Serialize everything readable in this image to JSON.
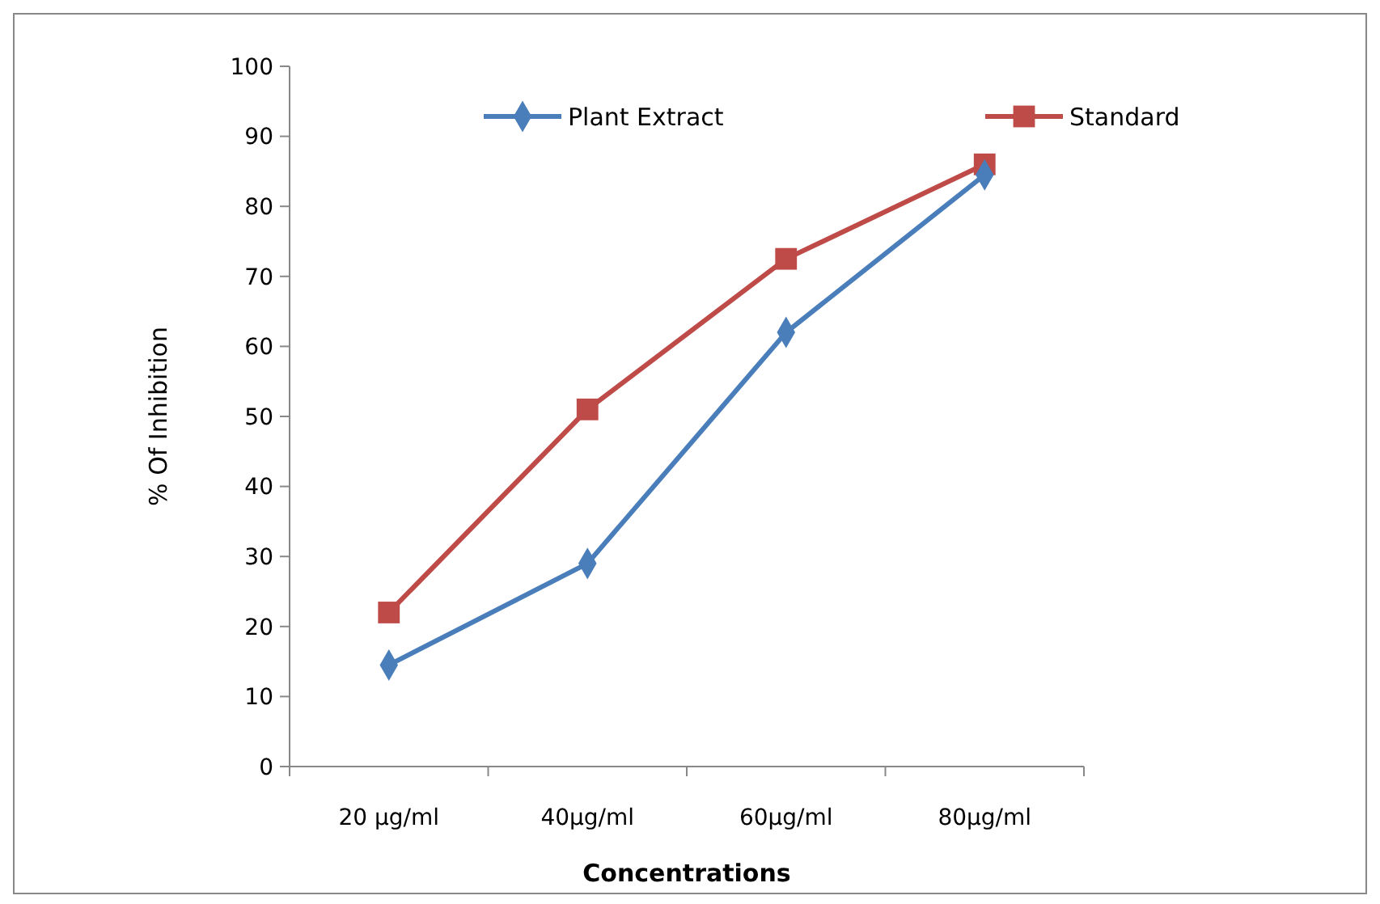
{
  "chart_data": {
    "type": "line",
    "xlabel": "Concentrations",
    "ylabel": "% Of Inhibition",
    "categories": [
      "20 µg/ml",
      "40µg/ml",
      "60µg/ml",
      "80µg/ml"
    ],
    "series": [
      {
        "name": "Plant Extract",
        "color": "#4a7ebb",
        "marker": "diamond",
        "values": [
          14.5,
          29,
          62,
          84.5
        ]
      },
      {
        "name": "Standard",
        "color": "#be4b48",
        "marker": "square",
        "values": [
          22,
          51,
          72.5,
          86
        ]
      }
    ],
    "ylim": [
      0,
      100
    ],
    "yticks": [
      0,
      10,
      20,
      30,
      40,
      50,
      60,
      70,
      80,
      90,
      100
    ],
    "grid": false,
    "legend": "top",
    "line_style": "solid"
  }
}
